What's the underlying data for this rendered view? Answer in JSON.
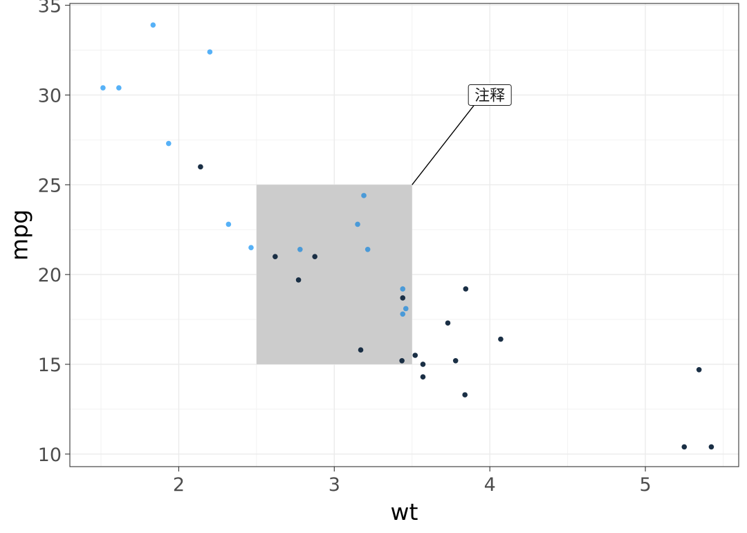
{
  "chart_data": {
    "type": "scatter",
    "title": "",
    "xlabel": "wt",
    "ylabel": "mpg",
    "xlim": [
      1.3,
      5.6
    ],
    "ylim": [
      9.3,
      35.1
    ],
    "x_ticks": [
      2,
      3,
      4,
      5
    ],
    "x_tick_labels": [
      "2",
      "3",
      "4",
      "5"
    ],
    "y_ticks": [
      10,
      15,
      20,
      25,
      30,
      35
    ],
    "y_tick_labels": [
      "10",
      "15",
      "20",
      "25",
      "30",
      "35"
    ],
    "grid": true,
    "legend": "none",
    "color_scale": {
      "low": "#132b43",
      "high": "#56b1f7"
    },
    "points": [
      {
        "wt": 2.62,
        "mpg": 21.0,
        "color": "#1a2f45"
      },
      {
        "wt": 2.875,
        "mpg": 21.0,
        "color": "#1a2f45"
      },
      {
        "wt": 2.32,
        "mpg": 22.8,
        "color": "#56b1f7"
      },
      {
        "wt": 3.215,
        "mpg": 21.4,
        "color": "#4a9ad8"
      },
      {
        "wt": 3.44,
        "mpg": 18.7,
        "color": "#1a2f45"
      },
      {
        "wt": 3.46,
        "mpg": 18.1,
        "color": "#4a9ad8"
      },
      {
        "wt": 3.57,
        "mpg": 14.3,
        "color": "#1a2f45"
      },
      {
        "wt": 3.19,
        "mpg": 24.4,
        "color": "#4a9ad8"
      },
      {
        "wt": 3.15,
        "mpg": 22.8,
        "color": "#4a9ad8"
      },
      {
        "wt": 3.44,
        "mpg": 19.2,
        "color": "#4a9ad8"
      },
      {
        "wt": 3.44,
        "mpg": 17.8,
        "color": "#4a9ad8"
      },
      {
        "wt": 4.07,
        "mpg": 16.4,
        "color": "#1a2f45"
      },
      {
        "wt": 3.73,
        "mpg": 17.3,
        "color": "#1a2f45"
      },
      {
        "wt": 3.78,
        "mpg": 15.2,
        "color": "#1a2f45"
      },
      {
        "wt": 5.25,
        "mpg": 10.4,
        "color": "#1a2f45"
      },
      {
        "wt": 5.424,
        "mpg": 10.4,
        "color": "#1a2f45"
      },
      {
        "wt": 5.345,
        "mpg": 14.7,
        "color": "#1a2f45"
      },
      {
        "wt": 2.2,
        "mpg": 32.4,
        "color": "#56b1f7"
      },
      {
        "wt": 1.615,
        "mpg": 30.4,
        "color": "#56b1f7"
      },
      {
        "wt": 1.835,
        "mpg": 33.9,
        "color": "#56b1f7"
      },
      {
        "wt": 2.465,
        "mpg": 21.5,
        "color": "#56b1f7"
      },
      {
        "wt": 3.52,
        "mpg": 15.5,
        "color": "#1a2f45"
      },
      {
        "wt": 3.435,
        "mpg": 15.2,
        "color": "#1a2f45"
      },
      {
        "wt": 3.84,
        "mpg": 13.3,
        "color": "#1a2f45"
      },
      {
        "wt": 3.845,
        "mpg": 19.2,
        "color": "#1a2f45"
      },
      {
        "wt": 1.935,
        "mpg": 27.3,
        "color": "#56b1f7"
      },
      {
        "wt": 2.14,
        "mpg": 26.0,
        "color": "#1a2f45"
      },
      {
        "wt": 1.513,
        "mpg": 30.4,
        "color": "#56b1f7"
      },
      {
        "wt": 3.17,
        "mpg": 15.8,
        "color": "#1a2f45"
      },
      {
        "wt": 2.77,
        "mpg": 19.7,
        "color": "#1a2f45"
      },
      {
        "wt": 3.57,
        "mpg": 15.0,
        "color": "#1a2f45"
      },
      {
        "wt": 2.78,
        "mpg": 21.4,
        "color": "#4a9ad8"
      }
    ],
    "annotations": {
      "rect": {
        "xmin": 2.5,
        "xmax": 3.5,
        "ymin": 15,
        "ymax": 25,
        "fill": "#cccccc"
      },
      "segment": {
        "x": 3.5,
        "y": 25,
        "xend": 3.95,
        "yend": 30
      },
      "label": {
        "text": "注释",
        "x": 4.0,
        "y": 30
      }
    }
  }
}
